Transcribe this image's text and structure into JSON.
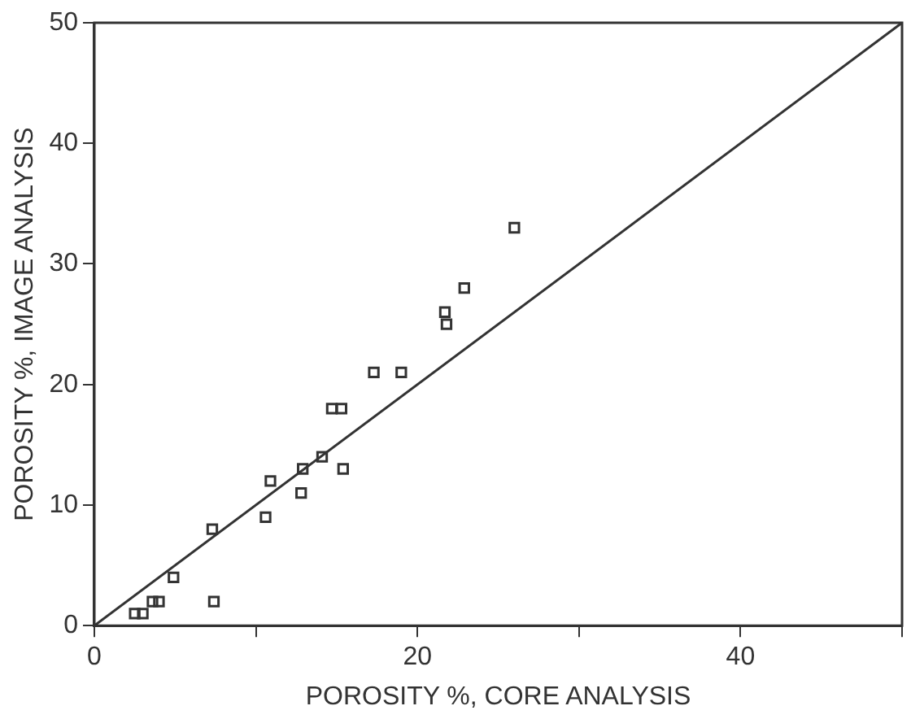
{
  "chart_data": {
    "type": "scatter",
    "xlabel": "POROSITY %, CORE ANALYSIS",
    "ylabel": "POROSITY %, IMAGE ANALYSIS",
    "xlim": [
      0,
      50
    ],
    "ylim": [
      0,
      50
    ],
    "xticks": [
      0,
      {
        "value": 10,
        "label": null
      },
      20,
      {
        "value": 30,
        "label": null
      },
      40,
      {
        "value": 50,
        "label": null
      }
    ],
    "yticks": [
      0,
      10,
      20,
      30,
      40,
      50
    ],
    "grid": false,
    "legend": false,
    "marker": "square",
    "series": [
      {
        "type": "scatter",
        "color": "#333333",
        "x": [
          2.5,
          3,
          3.6,
          4,
          4.9,
          7.3,
          7.4,
          10.6,
          10.9,
          12.8,
          12.9,
          14.1,
          14.7,
          15.3,
          15.4,
          17.3,
          19,
          21.7,
          21.8,
          22.9,
          26
        ],
        "values": [
          1,
          1,
          2,
          2,
          4,
          8,
          2,
          9,
          12,
          11,
          13,
          14,
          18,
          18,
          13,
          21,
          21,
          26,
          25,
          28,
          33
        ]
      },
      {
        "type": "line",
        "color": "#333333",
        "marker": "none",
        "line_style": "solid",
        "x": [
          0,
          50
        ],
        "values": [
          0,
          50
        ]
      }
    ]
  }
}
